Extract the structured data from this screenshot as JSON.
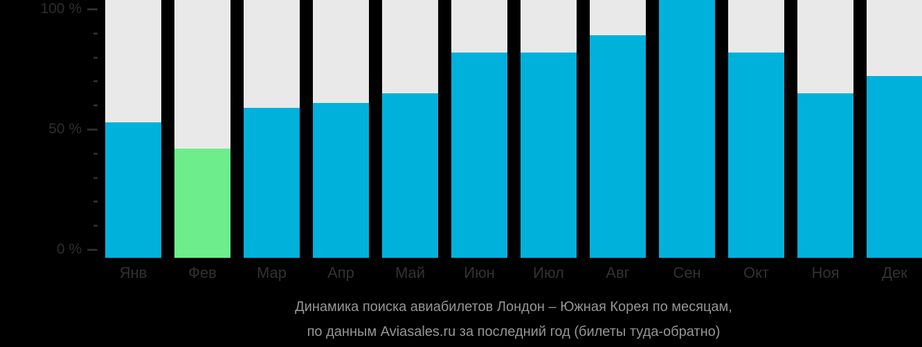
{
  "colors": {
    "background": "#000000",
    "bar_default": "#00B1DC",
    "bar_highlight": "#6DED8C",
    "bar_track": "#E9E9E9",
    "axis_label": "#2D2D2D",
    "month_label": "#323232",
    "caption_text": "#959595"
  },
  "y_axis": {
    "tick_labels": [
      "100 %",
      "50 %",
      "0 %"
    ],
    "major_ticks_percent": [
      100,
      50,
      0
    ],
    "minor_ticks_percent": [
      90,
      80,
      70,
      60,
      40,
      30,
      20,
      10
    ]
  },
  "chart_data": {
    "type": "bar",
    "title": "Динамика поиска авиабилетов Лондон – Южная Корея по месяцам,",
    "subtitle": "по данным Aviasales.ru за последний год (билеты туда-обратно)",
    "xlabel": "",
    "ylabel": "",
    "unit": "%",
    "ylim": [
      0,
      100
    ],
    "grid": "off",
    "legend": "none",
    "categories": [
      "Янв",
      "Фев",
      "Мар",
      "Апр",
      "Май",
      "Июн",
      "Июл",
      "Авг",
      "Сен",
      "Окт",
      "Ноя",
      "Дек"
    ],
    "values": [
      53,
      42,
      59,
      61,
      65,
      82,
      82,
      89,
      100,
      82,
      65,
      72
    ],
    "highlight_index": 1,
    "highlight_meaning": "lowest-search-month"
  }
}
